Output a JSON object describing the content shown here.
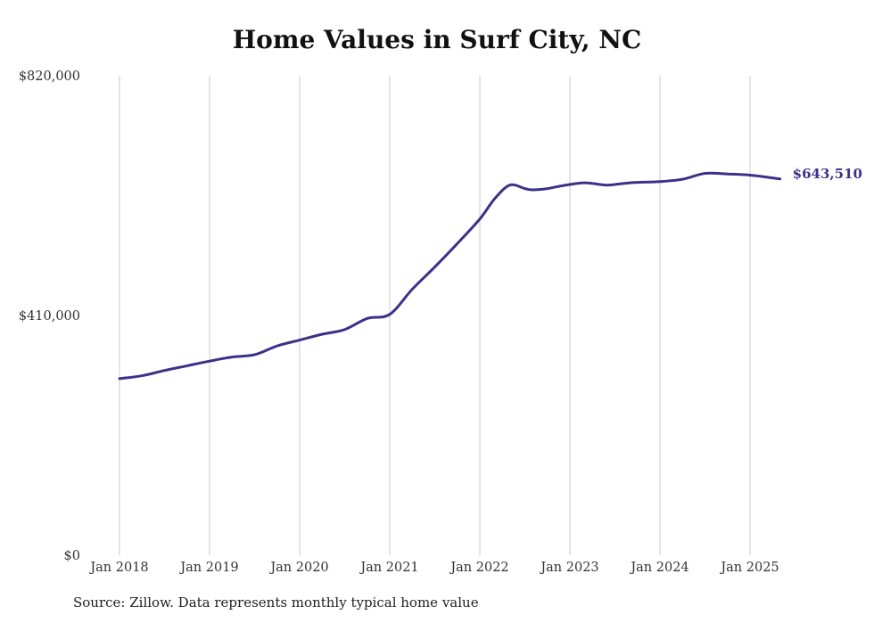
{
  "title": "Home Values in Surf City, NC",
  "source": "Source: Zillow. Data represents monthly typical home value",
  "colors": {
    "line": "#3b318a",
    "grid": "#c8c8c8",
    "text": "#333333"
  },
  "chart_data": {
    "type": "line",
    "title": "Home Values in Surf City, NC",
    "xlabel": "",
    "ylabel": "",
    "ylim": [
      0,
      820000
    ],
    "xlim": [
      "2018-01",
      "2025-05"
    ],
    "grid": "vertical",
    "y_ticks": [
      "$0",
      "$410,000",
      "$820,000"
    ],
    "y_tick_values": [
      0,
      410000,
      820000
    ],
    "x_ticks": [
      "Jan 2018",
      "Jan 2019",
      "Jan 2020",
      "Jan 2021",
      "Jan 2022",
      "Jan 2023",
      "Jan 2024",
      "Jan 2025"
    ],
    "x_tick_dates": [
      "2018-01",
      "2019-01",
      "2020-01",
      "2021-01",
      "2022-01",
      "2023-01",
      "2024-01",
      "2025-01"
    ],
    "end_label": "$643,510",
    "series": [
      {
        "x": [
          "2018-01",
          "2018-04",
          "2018-07",
          "2018-10",
          "2019-01",
          "2019-04",
          "2019-07",
          "2019-10",
          "2020-01",
          "2020-04",
          "2020-07",
          "2020-10",
          "2021-01",
          "2021-04",
          "2021-07",
          "2021-10",
          "2022-01",
          "2022-03",
          "2022-05",
          "2022-07",
          "2022-08",
          "2022-10",
          "2022-12",
          "2023-03",
          "2023-06",
          "2023-09",
          "2024-01",
          "2024-04",
          "2024-07",
          "2024-10",
          "2025-01",
          "2025-05"
        ],
        "values": [
          302000,
          307000,
          316000,
          324000,
          332000,
          339000,
          343000,
          358000,
          368000,
          378000,
          386000,
          405000,
          412000,
          455000,
          493000,
          533000,
          575000,
          610000,
          633000,
          627000,
          625000,
          627000,
          632000,
          637000,
          633000,
          637000,
          639000,
          643000,
          653000,
          652000,
          650000,
          643510
        ]
      }
    ]
  }
}
